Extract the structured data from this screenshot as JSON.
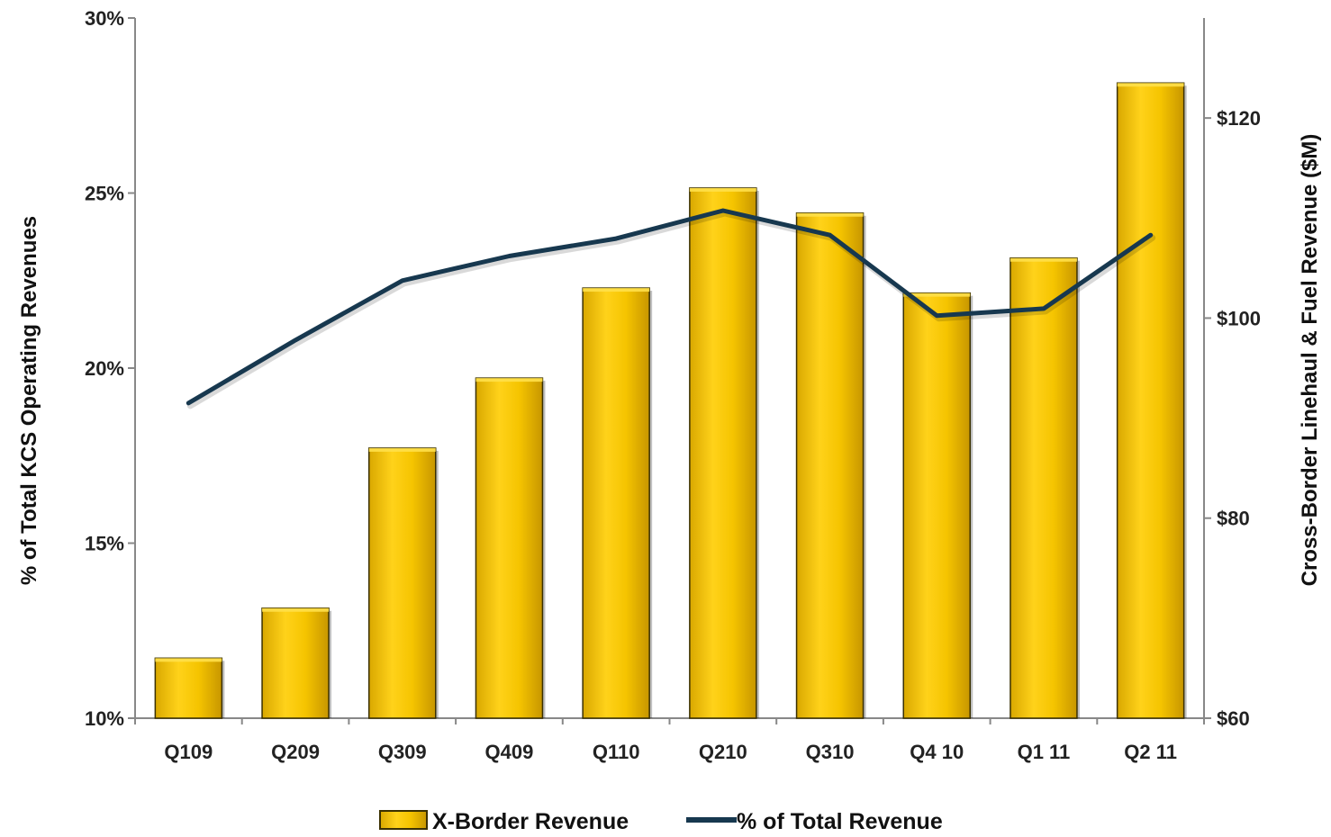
{
  "chart_data": {
    "type": "bar",
    "categories": [
      "Q109",
      "Q209",
      "Q309",
      "Q409",
      "Q110",
      "Q210",
      "Q310",
      "Q4 10",
      "Q1 11",
      "Q2 11"
    ],
    "series": [
      {
        "name": "X-Border Revenue",
        "type": "bar",
        "axis": "right",
        "values": [
          66,
          71,
          87,
          94,
          103,
          113,
          110.5,
          102.5,
          106,
          123.5
        ]
      },
      {
        "name": "% of Total Revenue",
        "type": "line",
        "axis": "left",
        "values": [
          19.0,
          20.8,
          22.5,
          23.2,
          23.7,
          24.5,
          23.8,
          21.5,
          21.7,
          23.8
        ]
      }
    ],
    "ylabel_left": "% of Total KCS Operating Revenues",
    "ylabel_right": "Cross-Border Linehaul & Fuel Revenue ($M)",
    "ylim_left": [
      10,
      30
    ],
    "ylim_right": [
      60,
      130
    ],
    "yticks_left": [
      "10%",
      "15%",
      "20%",
      "25%",
      "30%"
    ],
    "yticks_left_values": [
      10,
      15,
      20,
      25,
      30
    ],
    "yticks_right": [
      "$60",
      "$80",
      "$100",
      "$120"
    ],
    "yticks_right_values": [
      60,
      80,
      100,
      120
    ],
    "legend_position": "bottom",
    "grid": false,
    "colors": {
      "bar_fill": "#F5C400",
      "bar_highlight": "#FFE04A",
      "bar_edge": "#3A3000",
      "line": "#17384F",
      "axis": "#888888"
    }
  }
}
